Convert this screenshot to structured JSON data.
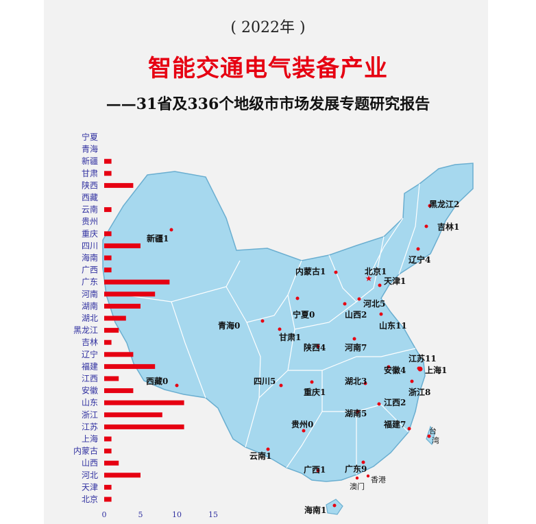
{
  "header": {
    "year": "( 2022年 )",
    "title": "智能交通电气装备产业",
    "subtitle": "——31省及336个地级市市场发展专题研究报告"
  },
  "colors": {
    "bar": "#e60012",
    "map_fill": "#a6d8ee",
    "map_stroke": "#6aaed0",
    "dot": "#e60012",
    "label": "#3030a0"
  },
  "chart_data": {
    "type": "bar",
    "orientation": "horizontal",
    "categories": [
      "宁夏",
      "青海",
      "新疆",
      "甘肃",
      "陕西",
      "西藏",
      "云南",
      "贵州",
      "重庆",
      "四川",
      "海南",
      "广西",
      "广东",
      "河南",
      "湖南",
      "湖北",
      "黑龙江",
      "吉林",
      "辽宁",
      "福建",
      "江西",
      "安徽",
      "山东",
      "浙江",
      "江苏",
      "上海",
      "内蒙古",
      "山西",
      "河北",
      "天津",
      "北京"
    ],
    "values": [
      0,
      0,
      1,
      1,
      4,
      0,
      1,
      0,
      1,
      5,
      1,
      1,
      9,
      7,
      5,
      3,
      2,
      1,
      4,
      7,
      2,
      4,
      11,
      8,
      11,
      1,
      1,
      2,
      5,
      1,
      1
    ],
    "xlim": [
      0,
      15
    ],
    "xticks": [
      "0",
      "5",
      "10",
      "15"
    ]
  },
  "map_labels": [
    {
      "name": "新疆1",
      "value": 1
    },
    {
      "name": "西藏0",
      "value": 0
    },
    {
      "name": "青海0",
      "value": 0
    },
    {
      "name": "甘肃1",
      "value": 1
    },
    {
      "name": "宁夏0",
      "value": 0
    },
    {
      "name": "内蒙古1",
      "value": 1
    },
    {
      "name": "黑龙江2",
      "value": 2
    },
    {
      "name": "吉林1",
      "value": 1
    },
    {
      "name": "辽宁4",
      "value": 4
    },
    {
      "name": "北京1",
      "value": 1
    },
    {
      "name": "天津1",
      "value": 1
    },
    {
      "name": "河北5",
      "value": 5
    },
    {
      "name": "山西2",
      "value": 2
    },
    {
      "name": "山东11",
      "value": 11
    },
    {
      "name": "陕西4",
      "value": 4
    },
    {
      "name": "河南7",
      "value": 7
    },
    {
      "name": "江苏11",
      "value": 11
    },
    {
      "name": "安徽4",
      "value": 4
    },
    {
      "name": "上海1",
      "value": 1
    },
    {
      "name": "四川5",
      "value": 5
    },
    {
      "name": "湖北3",
      "value": 3
    },
    {
      "name": "重庆1",
      "value": 1
    },
    {
      "name": "浙江8",
      "value": 8
    },
    {
      "name": "江西2",
      "value": 2
    },
    {
      "name": "湖南5",
      "value": 5
    },
    {
      "name": "贵州0",
      "value": 0
    },
    {
      "name": "福建7",
      "value": 7
    },
    {
      "name": "云南1",
      "value": 1
    },
    {
      "name": "广西1",
      "value": 1
    },
    {
      "name": "广东9",
      "value": 9
    },
    {
      "name": "海南1",
      "value": 1
    }
  ],
  "map_plain_labels": [
    "台湾",
    "澳门",
    "香港"
  ]
}
